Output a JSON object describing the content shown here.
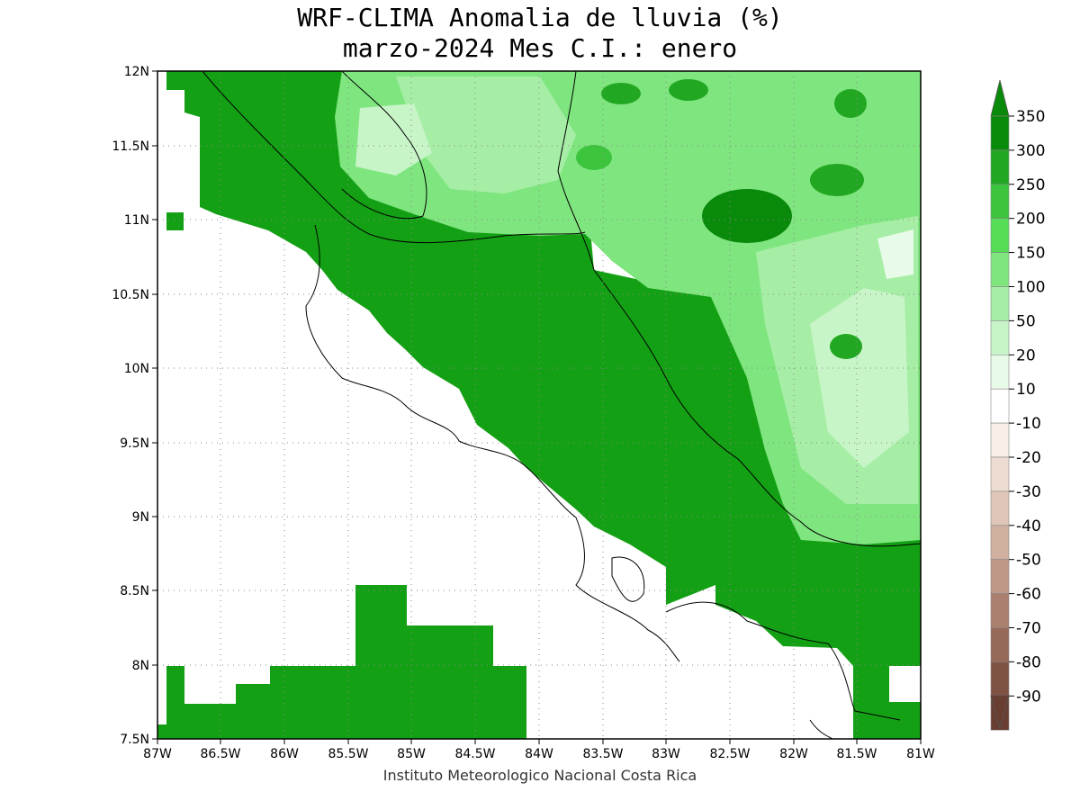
{
  "header": {
    "title_line1": "WRF-CLIMA Anomalia de lluvia (%)",
    "title_line2": "marzo-2024 Mes C.I.: enero"
  },
  "footer": {
    "credit": "Instituto Meteorologico Nacional Costa Rica"
  },
  "map": {
    "x_ticks": [
      "87W",
      "86.5W",
      "86W",
      "85.5W",
      "85W",
      "84.5W",
      "84W",
      "83.5W",
      "83W",
      "82.5W",
      "82W",
      "81.5W",
      "81W"
    ],
    "y_ticks": [
      "12N",
      "11.5N",
      "11N",
      "10.5N",
      "10N",
      "9.5N",
      "9N",
      "8.5N",
      "8N",
      "7.5N"
    ],
    "lon_range": [
      -87,
      -81
    ],
    "lat_range": [
      7.5,
      12
    ],
    "grid": "dotted"
  },
  "colorbar": {
    "labels": [
      "350",
      "300",
      "250",
      "200",
      "150",
      "100",
      "50",
      "20",
      "10",
      "-10",
      "-20",
      "-30",
      "-40",
      "-50",
      "-60",
      "-70",
      "-80",
      "-90"
    ],
    "colors": [
      "#0a8a0a",
      "#22a722",
      "#3cc43c",
      "#55dd55",
      "#7fe57f",
      "#a6eea6",
      "#c8f5c8",
      "#e8fbe8",
      "#ffffff",
      "#f7efe6",
      "#ecdcd1",
      "#dfc6b8",
      "#d0b09f",
      "#bf9887",
      "#ac806f",
      "#976a58",
      "#7f5343",
      "#683e30"
    ],
    "top_arrow_color": "#0a8a0a",
    "bottom_arrow_color": "#683e30"
  },
  "legend_colors": {
    "wet_strong": "#14a014",
    "wet_mid": "#55dd55",
    "wet_light": "#a6eea6",
    "neutral": "#ffffff"
  }
}
